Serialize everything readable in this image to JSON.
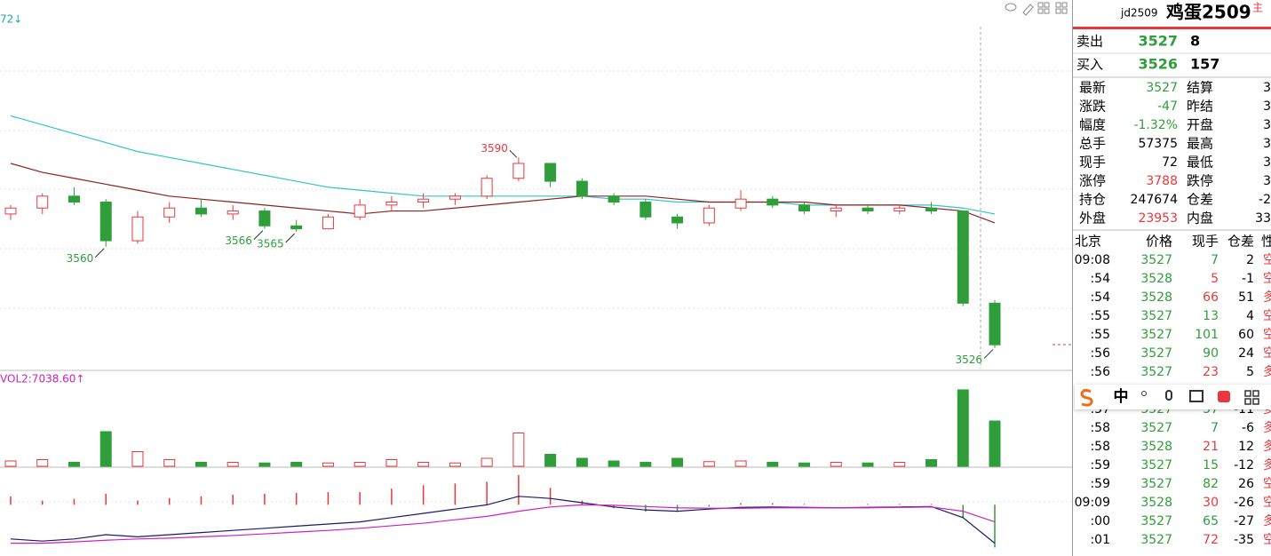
{
  "chart_data": {
    "type": "candlestick",
    "corner_label": "72↓",
    "ylim": [
      3519,
      3634
    ],
    "up_color": "#e8383d",
    "down_color": "#2f9e3a",
    "open": [
      3571,
      3573,
      3577,
      3575,
      3562,
      3570,
      3573,
      3571,
      3572,
      3567,
      3566,
      3570,
      3574,
      3575,
      3576,
      3577,
      3583,
      3588,
      3582,
      3577,
      3575,
      3570,
      3568,
      3573,
      3576,
      3574,
      3572,
      3573,
      3572,
      3573,
      3572,
      3541
    ],
    "high": [
      3574,
      3578,
      3580,
      3576,
      3572,
      3575,
      3576,
      3574,
      3573,
      3569,
      3571,
      3576,
      3577,
      3578,
      3578,
      3584,
      3590,
      3588,
      3583,
      3578,
      3576,
      3571,
      3574,
      3579,
      3577,
      3575,
      3574,
      3574,
      3574,
      3575,
      3572,
      3542
    ],
    "low": [
      3569,
      3571,
      3574,
      3560,
      3561,
      3568,
      3570,
      3569,
      3566,
      3565,
      3566,
      3569,
      3572,
      3573,
      3574,
      3576,
      3582,
      3580,
      3576,
      3574,
      3569,
      3566,
      3567,
      3572,
      3573,
      3571,
      3570,
      3571,
      3571,
      3571,
      3540,
      3526
    ],
    "close": [
      3573,
      3577,
      3575,
      3562,
      3570,
      3573,
      3571,
      3572,
      3567,
      3566,
      3570,
      3574,
      3575,
      3576,
      3577,
      3583,
      3588,
      3582,
      3577,
      3575,
      3570,
      3568,
      3573,
      3576,
      3574,
      3572,
      3573,
      3572,
      3573,
      3572,
      3541,
      3527
    ],
    "ma": [
      {
        "color": "#33c4c8",
        "values": [
          3604,
          3601,
          3598,
          3595,
          3592,
          3590,
          3588,
          3586,
          3584,
          3582,
          3580,
          3579,
          3578,
          3577,
          3577,
          3577,
          3577,
          3577,
          3577,
          3576,
          3576,
          3575,
          3575,
          3575,
          3575,
          3574,
          3574,
          3574,
          3574,
          3574,
          3573,
          3571
        ]
      },
      {
        "color": "#8b2323",
        "values": [
          3588,
          3585,
          3583,
          3581,
          3579,
          3577,
          3576,
          3575,
          3574,
          3573,
          3572,
          3571,
          3572,
          3572,
          3573,
          3574,
          3575,
          3576,
          3577,
          3577,
          3577,
          3576,
          3575,
          3575,
          3575,
          3575,
          3574,
          3574,
          3574,
          3573,
          3572,
          3568
        ]
      }
    ],
    "price_labels": [
      3560,
      3565,
      3590,
      3566,
      3526
    ],
    "volume": {
      "label": "VOL2:7038.60↑",
      "ylim": [
        0,
        60000
      ],
      "values": [
        4000,
        5000,
        3000,
        26000,
        11000,
        5000,
        3000,
        3000,
        2500,
        3000,
        2500,
        3000,
        5000,
        3000,
        2500,
        6000,
        25000,
        9000,
        6000,
        4000,
        3000,
        6000,
        3500,
        4000,
        3000,
        2500,
        3000,
        2500,
        3000,
        5000,
        57375,
        34000
      ]
    },
    "macd": {
      "ylim": [
        -12,
        8
      ],
      "dif": [
        -8,
        -8.5,
        -8,
        -7,
        -7.5,
        -7,
        -6.5,
        -6,
        -5.5,
        -5,
        -4.5,
        -4,
        -3,
        -2,
        -1,
        0,
        2,
        1.5,
        0.5,
        -0.5,
        -1.2,
        -1.5,
        -1,
        -0.6,
        -0.5,
        -0.6,
        -0.7,
        -0.6,
        -0.5,
        -0.4,
        -3,
        -9
      ],
      "dea": [
        -9,
        -9,
        -8.7,
        -8.3,
        -8,
        -7.8,
        -7.5,
        -7.2,
        -6.8,
        -6.4,
        -6,
        -5.5,
        -4.9,
        -4.3,
        -3.5,
        -2.7,
        -1.5,
        -0.5,
        0,
        -0.1,
        -0.4,
        -0.7,
        -0.8,
        -0.8,
        -0.7,
        -0.7,
        -0.7,
        -0.7,
        -0.6,
        -0.5,
        -1.5,
        -4
      ],
      "hist": [
        2,
        1,
        1.4,
        2.6,
        1,
        1.6,
        2,
        2.4,
        2.6,
        2.8,
        3,
        3,
        3.8,
        4.6,
        5,
        5.4,
        7,
        4,
        1,
        -0.8,
        -1.6,
        -1.6,
        -0.4,
        0.4,
        0.4,
        0.2,
        0,
        0.2,
        0.2,
        0.2,
        -3,
        -10
      ]
    }
  },
  "quote": {
    "code": "jd2509",
    "name": "鸡蛋2509",
    "tag": "主",
    "ask": {
      "label": "卖出",
      "price": 3527,
      "volume": 8
    },
    "bid": {
      "label": "买入",
      "price": 3526,
      "volume": 157
    },
    "stats": [
      [
        {
          "label": "最新",
          "value": 3527,
          "color": "#2f9e3a"
        },
        {
          "label": "结算",
          "value": 3
        }
      ],
      [
        {
          "label": "涨跌",
          "value": -47,
          "color": "#2f9e3a"
        },
        {
          "label": "昨结",
          "value": 3
        }
      ],
      [
        {
          "label": "幅度",
          "value": "-1.32%",
          "color": "#2f9e3a"
        },
        {
          "label": "开盘",
          "value": 3
        }
      ],
      [
        {
          "label": "总手",
          "value": 57375
        },
        {
          "label": "最高",
          "value": 3
        }
      ],
      [
        {
          "label": "现手",
          "value": 72
        },
        {
          "label": "最低",
          "value": 3
        }
      ],
      [
        {
          "label": "涨停",
          "value": 3788,
          "color": "#e8383d"
        },
        {
          "label": "跌停",
          "value": 3
        }
      ],
      [
        {
          "label": "持仓",
          "value": 247674
        },
        {
          "label": "仓差",
          "value": -2
        }
      ],
      [
        {
          "label": "外盘",
          "value": 23953,
          "color": "#e8383d"
        },
        {
          "label": "内盘",
          "value": 33
        }
      ]
    ],
    "ticks": {
      "header": [
        "北京",
        "价格",
        "现手",
        "仓差",
        "性"
      ],
      "rows": [
        {
          "time": "09:08",
          "price": 3527,
          "hand": 7,
          "change": 2,
          "kind": "空",
          "color": "#2f9e3a"
        },
        {
          "time": ":54",
          "price": 3528,
          "hand": 5,
          "change": -1,
          "kind": "空",
          "color": "#e8383d"
        },
        {
          "time": ":54",
          "price": 3528,
          "hand": 66,
          "change": 51,
          "kind": "多",
          "color": "#e8383d"
        },
        {
          "time": ":55",
          "price": 3527,
          "hand": 13,
          "change": 4,
          "kind": "空",
          "color": "#2f9e3a"
        },
        {
          "time": ":55",
          "price": 3527,
          "hand": 101,
          "change": 60,
          "kind": "空",
          "color": "#2f9e3a"
        },
        {
          "time": ":56",
          "price": 3527,
          "hand": 90,
          "change": 24,
          "kind": "空",
          "color": "#2f9e3a"
        },
        {
          "time": ":56",
          "price": 3527,
          "hand": 23,
          "change": 5,
          "kind": "多",
          "color": "#e8383d"
        },
        {
          "time": ":57",
          "price": 3527,
          "hand": 37,
          "change": -11,
          "kind": "多",
          "color": "#2f9e3a"
        },
        {
          "time": ":58",
          "price": 3527,
          "hand": 7,
          "change": -6,
          "kind": "多",
          "color": "#2f9e3a"
        },
        {
          "time": ":58",
          "price": 3528,
          "hand": 21,
          "change": 12,
          "kind": "多",
          "color": "#e8383d"
        },
        {
          "time": ":59",
          "price": 3527,
          "hand": 15,
          "change": -12,
          "kind": "多",
          "color": "#2f9e3a"
        },
        {
          "time": ":59",
          "price": 3527,
          "hand": 82,
          "change": 26,
          "kind": "空",
          "color": "#2f9e3a"
        },
        {
          "time": "09:09",
          "price": 3528,
          "hand": 30,
          "change": -26,
          "kind": "空",
          "color": "#e8383d"
        },
        {
          "time": ":00",
          "price": 3527,
          "hand": 65,
          "change": -27,
          "kind": "多",
          "color": "#2f9e3a"
        },
        {
          "time": ":01",
          "price": 3527,
          "hand": 72,
          "change": -35,
          "kind": "空",
          "color": "#e8383d"
        }
      ]
    }
  },
  "ime": {
    "label": "中"
  }
}
